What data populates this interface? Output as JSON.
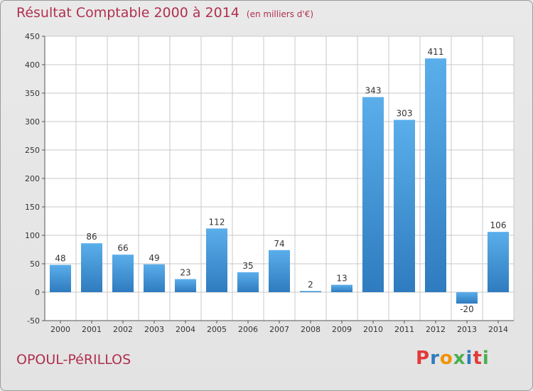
{
  "header": {
    "title": "Résultat Comptable 2000 à 2014",
    "subtitle": "(en milliers d'€)"
  },
  "footer": {
    "place": "OPOUL-PéRILLOS",
    "logo_text": "Proxiti"
  },
  "colors": {
    "title": "#b03050",
    "bar_top": "#5aaeea",
    "bar_bottom": "#2f7bbf",
    "grid": "#c8c8c8",
    "plot_bg": "#ffffff",
    "logo_letters": [
      "#e23a3a",
      "#2f7bbf",
      "#f39200",
      "#4caf50",
      "#2f7bbf",
      "#e23a3a",
      "#4caf50"
    ]
  },
  "chart_data": {
    "type": "bar",
    "title": "Résultat Comptable 2000 à 2014",
    "subtitle": "(en milliers d'€)",
    "xlabel": "",
    "ylabel": "",
    "categories": [
      "2000",
      "2001",
      "2002",
      "2003",
      "2004",
      "2005",
      "2006",
      "2007",
      "2008",
      "2009",
      "2010",
      "2011",
      "2012",
      "2013",
      "2014"
    ],
    "values": [
      48,
      86,
      66,
      49,
      23,
      112,
      35,
      74,
      2,
      13,
      343,
      303,
      411,
      -20,
      106
    ],
    "ylim": [
      -50,
      450
    ],
    "yticks": [
      -50,
      0,
      50,
      100,
      150,
      200,
      250,
      300,
      350,
      400,
      450
    ],
    "grid": true,
    "legend": "none"
  }
}
